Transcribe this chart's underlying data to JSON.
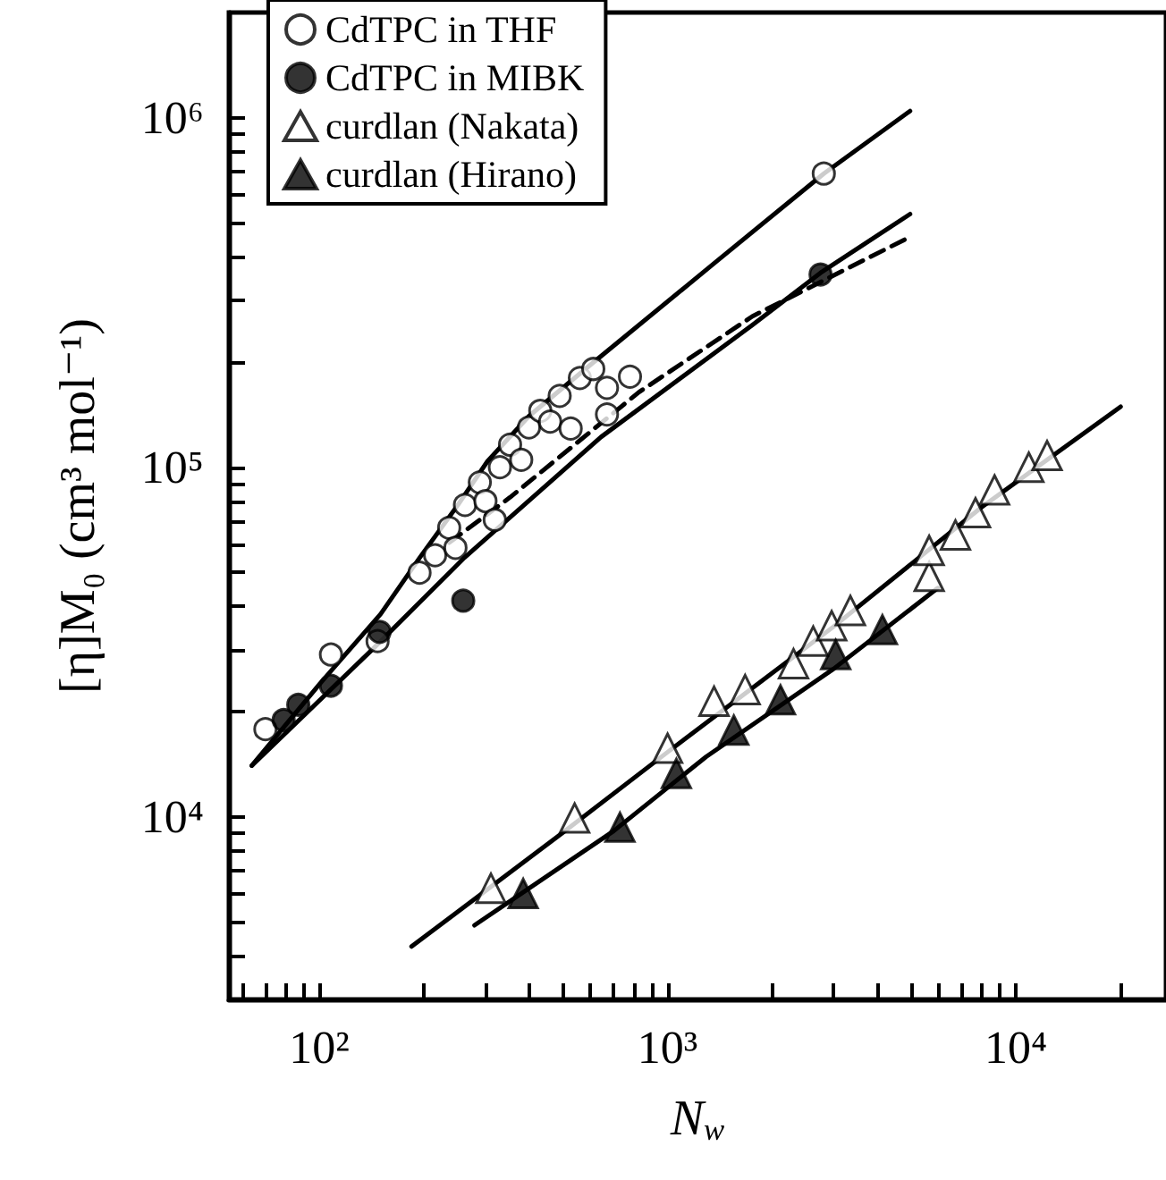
{
  "chart_data": {
    "type": "scatter",
    "xlabel": "N$_{w}$",
    "ylabel": "[η]M₀ (cm³ mol⁻¹)",
    "log": "xy",
    "grid": false,
    "legend": "top left",
    "xlim": [
      55,
      27000
    ],
    "ylim": [
      3000,
      2000000
    ],
    "xticks": [
      {
        "value": 60,
        "label": null
      },
      {
        "value": 70,
        "label": null
      },
      {
        "value": 80,
        "label": null
      },
      {
        "value": 90,
        "label": null
      },
      {
        "value": 100,
        "label": "10²"
      },
      {
        "value": 200,
        "label": null
      },
      {
        "value": 300,
        "label": null
      },
      {
        "value": 400,
        "label": null
      },
      {
        "value": 500,
        "label": null
      },
      {
        "value": 600,
        "label": null
      },
      {
        "value": 700,
        "label": null
      },
      {
        "value": 800,
        "label": null
      },
      {
        "value": 900,
        "label": null
      },
      {
        "value": 1000,
        "label": "10³"
      },
      {
        "value": 2000,
        "label": null
      },
      {
        "value": 3000,
        "label": null
      },
      {
        "value": 4000,
        "label": null
      },
      {
        "value": 5000,
        "label": null
      },
      {
        "value": 6000,
        "label": null
      },
      {
        "value": 7000,
        "label": null
      },
      {
        "value": 8000,
        "label": null
      },
      {
        "value": 9000,
        "label": null
      },
      {
        "value": 10000,
        "label": "10⁴"
      },
      {
        "value": 20000,
        "label": null
      }
    ],
    "yticks": [
      {
        "value": 3000,
        "label": null
      },
      {
        "value": 4000,
        "label": null
      },
      {
        "value": 5000,
        "label": null
      },
      {
        "value": 6000,
        "label": null
      },
      {
        "value": 7000,
        "label": null
      },
      {
        "value": 8000,
        "label": null
      },
      {
        "value": 9000,
        "label": null
      },
      {
        "value": 10000,
        "label": "10⁴"
      },
      {
        "value": 20000,
        "label": null
      },
      {
        "value": 30000,
        "label": null
      },
      {
        "value": 40000,
        "label": null
      },
      {
        "value": 50000,
        "label": null
      },
      {
        "value": 60000,
        "label": null
      },
      {
        "value": 70000,
        "label": null
      },
      {
        "value": 80000,
        "label": null
      },
      {
        "value": 90000,
        "label": null
      },
      {
        "value": 100000,
        "label": "10⁵"
      },
      {
        "value": 200000,
        "label": null
      },
      {
        "value": 300000,
        "label": null
      },
      {
        "value": 400000,
        "label": null
      },
      {
        "value": 500000,
        "label": null
      },
      {
        "value": 600000,
        "label": null
      },
      {
        "value": 700000,
        "label": null
      },
      {
        "value": 800000,
        "label": null
      },
      {
        "value": 900000,
        "label": null
      },
      {
        "value": 1000000,
        "label": "10⁶"
      }
    ],
    "series": [
      {
        "type": "line",
        "line_style": "solid",
        "color": "#000000",
        "x": [
          64,
          101,
          150,
          194,
          250,
          304,
          400,
          581,
          1360,
          2810,
          4970
        ],
        "values": [
          14000,
          24200,
          38000,
          55000,
          78000,
          104000,
          140000,
          191000,
          383000,
          692000,
          1045000
        ]
      },
      {
        "type": "line",
        "line_style": "solid",
        "color": "#000000",
        "x": [
          64,
          143,
          261,
          644,
          1750,
          2750,
          4970
        ],
        "values": [
          14000,
          30300,
          55100,
          122000,
          255000,
          360000,
          530000
        ]
      },
      {
        "type": "line",
        "line_style": "dashed",
        "color": "#000000",
        "x": [
          236,
          353,
          828,
          1750,
          4970
        ],
        "values": [
          60800,
          82000,
          164000,
          270000,
          456000
        ]
      },
      {
        "type": "line",
        "line_style": "solid",
        "color": "#000000",
        "x": [
          184,
          500,
          1000,
          3000,
          8000,
          20000
        ],
        "values": [
          4250,
          9000,
          15300,
          35000,
          77000,
          149000
        ]
      },
      {
        "type": "line",
        "line_style": "solid",
        "color": "#000000",
        "x": [
          279,
          700,
          1291,
          3000,
          5970
        ],
        "values": [
          4890,
          9100,
          14850,
          26500,
          45100
        ]
      },
      {
        "name": "CdTPC in THF",
        "marker": "circle",
        "color": "#ffffff",
        "x": [
          70,
          108,
          147,
          194,
          215,
          236,
          246,
          262,
          289,
          300,
          319,
          330,
          353,
          380,
          400,
          431,
          460,
          490,
          527,
          560,
          612,
          670,
          670,
          780,
          2810
        ],
        "values": [
          17800,
          29100,
          31800,
          49900,
          56000,
          67100,
          58800,
          78000,
          90500,
          80000,
          70700,
          100000,
          116000,
          105000,
          130000,
          145000,
          135000,
          160000,
          129000,
          180000,
          191000,
          141600,
          168700,
          181600,
          692000
        ]
      },
      {
        "name": "CdTPC in MIBK",
        "marker": "circle",
        "color": "#000000",
        "x": [
          79,
          87,
          108,
          149,
          259,
          2750
        ],
        "values": [
          18900,
          20900,
          23700,
          33800,
          41500,
          356000
        ]
      },
      {
        "name": "curdlan (Nakata)",
        "marker": "triangle",
        "color": "#ffffff",
        "x": [
          311,
          541,
          1000,
          1360,
          1670,
          2300,
          2620,
          2960,
          3350,
          5640,
          5640,
          6710,
          7660,
          8690,
          10900,
          12300
        ],
        "values": [
          6240,
          9910,
          15700,
          21400,
          23100,
          27400,
          31800,
          35200,
          38900,
          48700,
          57800,
          64000,
          74100,
          86100,
          100000,
          108000
        ]
      },
      {
        "name": "curdlan (Hirano)",
        "marker": "triangle",
        "color": "#000000",
        "x": [
          385,
          730,
          1060,
          1550,
          2110,
          3040,
          4140
        ],
        "values": [
          6030,
          9330,
          13300,
          17700,
          21600,
          29100,
          34300
        ]
      }
    ]
  }
}
